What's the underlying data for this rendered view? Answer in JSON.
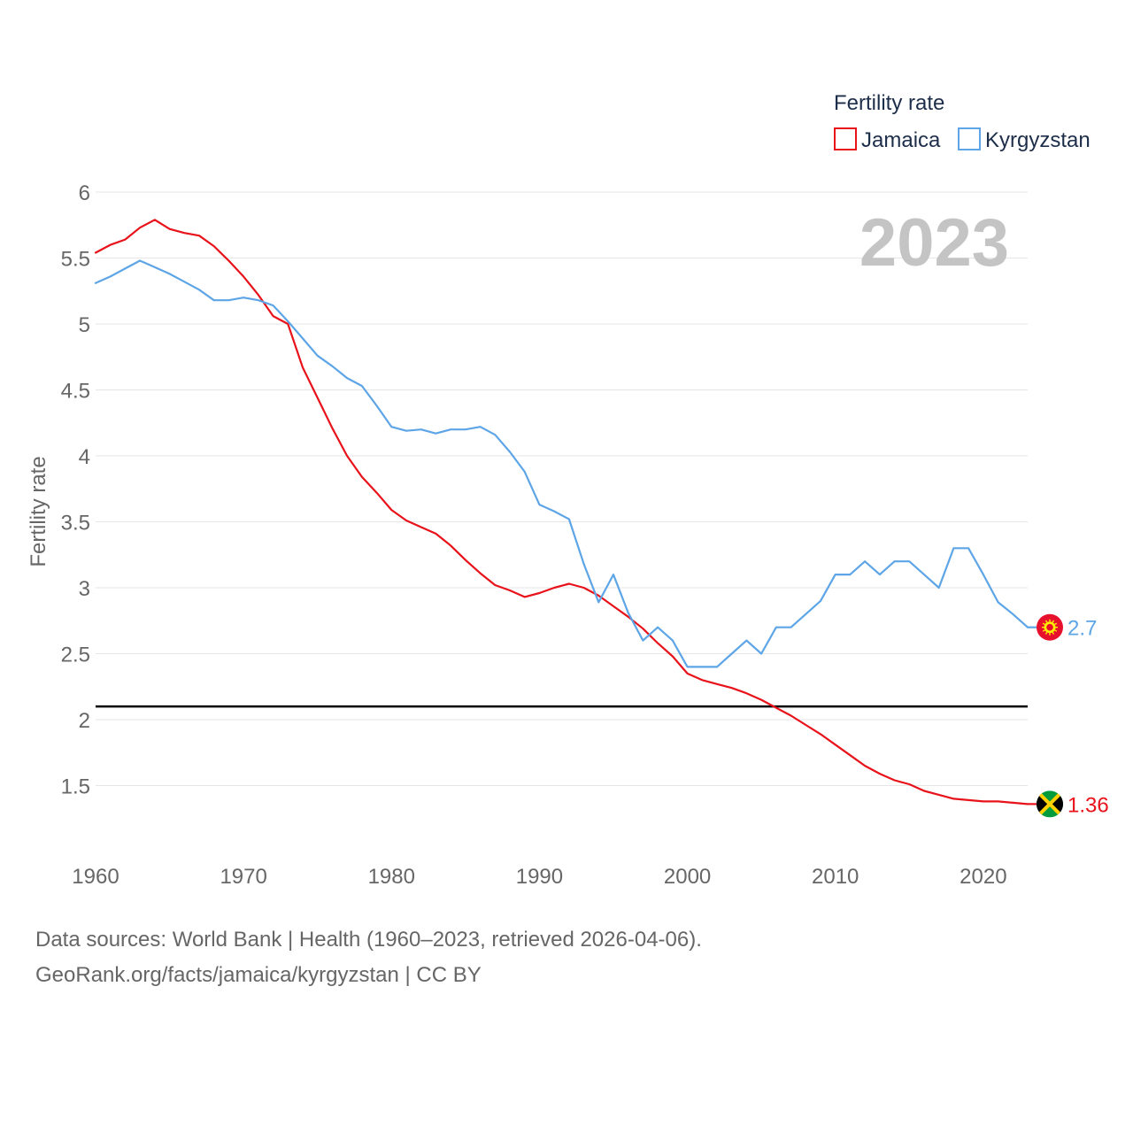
{
  "chart_data": {
    "type": "line",
    "legend_title": "Fertility rate",
    "legend_position": "top-right",
    "big_year_label": "2023",
    "ylabel": "Fertility rate",
    "xlabel": "",
    "xlim": [
      1960,
      2023
    ],
    "ylim": [
      1,
      6
    ],
    "grid": true,
    "x_ticks": [
      1960,
      1970,
      1980,
      1990,
      2000,
      2010,
      2020
    ],
    "y_ticks": [
      1.5,
      2,
      2.5,
      3,
      3.5,
      4,
      4.5,
      5,
      5.5,
      6
    ],
    "reference_line": {
      "y": 2.1,
      "color": "#000000"
    },
    "x": [
      1960,
      1961,
      1962,
      1963,
      1964,
      1965,
      1966,
      1967,
      1968,
      1969,
      1970,
      1971,
      1972,
      1973,
      1974,
      1975,
      1976,
      1977,
      1978,
      1979,
      1980,
      1981,
      1982,
      1983,
      1984,
      1985,
      1986,
      1987,
      1988,
      1989,
      1990,
      1991,
      1992,
      1993,
      1994,
      1995,
      1996,
      1997,
      1998,
      1999,
      2000,
      2001,
      2002,
      2003,
      2004,
      2005,
      2006,
      2007,
      2008,
      2009,
      2010,
      2011,
      2012,
      2013,
      2014,
      2015,
      2016,
      2017,
      2018,
      2019,
      2020,
      2021,
      2022,
      2023
    ],
    "series": [
      {
        "name": "Jamaica",
        "color": "#e8121a",
        "end_label": "1.36",
        "flag_icon": "jamaica-flag-icon",
        "values": [
          5.54,
          5.6,
          5.64,
          5.73,
          5.79,
          5.72,
          5.69,
          5.67,
          5.59,
          5.48,
          5.36,
          5.22,
          5.06,
          5.0,
          4.67,
          4.44,
          4.21,
          4.0,
          3.84,
          3.72,
          3.59,
          3.51,
          3.46,
          3.41,
          3.32,
          3.21,
          3.11,
          3.02,
          2.98,
          2.93,
          2.96,
          3.0,
          3.03,
          3.0,
          2.94,
          2.86,
          2.78,
          2.69,
          2.58,
          2.48,
          2.35,
          2.3,
          2.27,
          2.24,
          2.2,
          2.15,
          2.09,
          2.03,
          1.96,
          1.89,
          1.81,
          1.73,
          1.65,
          1.59,
          1.54,
          1.51,
          1.46,
          1.43,
          1.4,
          1.39,
          1.38,
          1.38,
          1.37,
          1.36
        ]
      },
      {
        "name": "Kyrgyzstan",
        "color": "#5da5e6",
        "end_label": "2.7",
        "flag_icon": "kyrgyzstan-flag-icon",
        "values": [
          5.31,
          5.36,
          5.42,
          5.48,
          5.43,
          5.38,
          5.32,
          5.26,
          5.18,
          5.18,
          5.2,
          5.18,
          5.14,
          5.02,
          4.89,
          4.76,
          4.68,
          4.59,
          4.53,
          4.38,
          4.22,
          4.19,
          4.2,
          4.17,
          4.2,
          4.2,
          4.22,
          4.16,
          4.03,
          3.88,
          3.63,
          3.58,
          3.52,
          3.18,
          2.89,
          3.1,
          2.81,
          2.6,
          2.7,
          2.6,
          2.4,
          2.4,
          2.4,
          2.5,
          2.6,
          2.5,
          2.7,
          2.7,
          2.8,
          2.9,
          3.1,
          3.1,
          3.2,
          3.1,
          3.2,
          3.2,
          3.1,
          3.0,
          3.3,
          3.3,
          3.1,
          2.89,
          2.8,
          2.7
        ]
      }
    ]
  },
  "footer": {
    "line1": "Data sources: World Bank | Health (1960–2023, retrieved 2026-04-06).",
    "line2": "GeoRank.org/facts/jamaica/kyrgyzstan | CC BY"
  }
}
